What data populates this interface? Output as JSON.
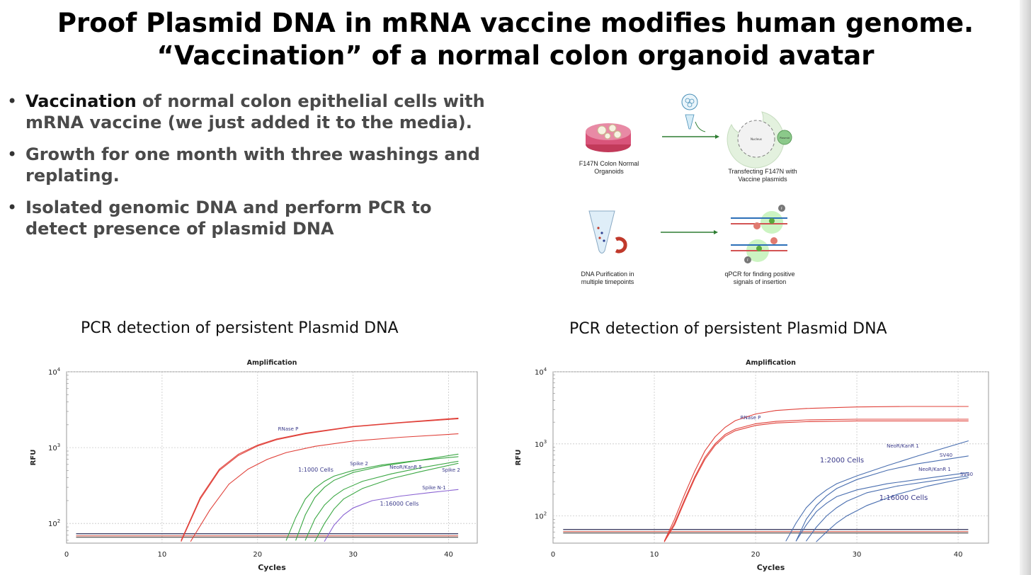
{
  "title": {
    "line1": "Proof Plasmid DNA in mRNA vaccine modifies human genome.",
    "line2": "“Vaccination” of a normal colon organoid avatar"
  },
  "bullets": [
    {
      "highlight": "Vaccination",
      "rest": " of normal colon epithelial cells with mRNA vaccine (we just added it to the media)."
    },
    {
      "highlight": "",
      "rest": "Growth for one month with three washings and replating."
    },
    {
      "highlight": "",
      "rest": "Isolated genomic DNA and perform PCR to detect presence of plasmid DNA"
    }
  ],
  "schematic": {
    "step1": "F147N Colon Normal Organoids",
    "step2": "Transfecting F147N with Vaccine plasmids",
    "step3": "DNA Purification in multiple timepoints",
    "step4": "qPCR for finding positive signals of insertion",
    "cell_nucleus_label": "Nucleus",
    "plasmid_label": "Plasmid",
    "probe_label": "F"
  },
  "colors": {
    "rnase_red": "#e0413a",
    "green_series": "#3ca845",
    "purple_series": "#8a63d2",
    "blue_series": "#4a6fb0",
    "threshold_dark": "#2b2b55",
    "bullet_gray": "#4a4a4a"
  },
  "chart_data": [
    {
      "type": "line",
      "panel_title": "PCR detection of persistent Plasmid DNA",
      "title": "Amplification",
      "xlabel": "Cycles",
      "ylabel": "RFU",
      "x_ticks": [
        0,
        10,
        20,
        30,
        40
      ],
      "y_ticks": [
        {
          "label_base": "10",
          "label_exp": "2",
          "value": 100
        },
        {
          "label_base": "10",
          "label_exp": "3",
          "value": 1000
        },
        {
          "label_base": "10",
          "label_exp": "4",
          "value": 10000
        }
      ],
      "xlim": [
        0,
        43
      ],
      "ylim": [
        55,
        10000
      ],
      "yscale": "log",
      "grid": true,
      "threshold": 70,
      "series": [
        {
          "name": "RNase P",
          "color": "#e0413a",
          "x": [
            12,
            14,
            16,
            18,
            20,
            22,
            25,
            30,
            35,
            41
          ],
          "y": [
            60,
            220,
            520,
            820,
            1080,
            1300,
            1550,
            1900,
            2150,
            2450
          ]
        },
        {
          "name": "",
          "color": "#e0413a",
          "x": [
            12,
            14,
            16,
            18,
            20,
            22,
            25,
            30,
            35,
            41
          ],
          "y": [
            58,
            210,
            500,
            790,
            1050,
            1270,
            1520,
            1880,
            2120,
            2400
          ]
        },
        {
          "name": "",
          "color": "#e0413a",
          "x": [
            13,
            15,
            17,
            19,
            21,
            23,
            26,
            30,
            35,
            41
          ],
          "y": [
            58,
            150,
            330,
            520,
            700,
            860,
            1040,
            1220,
            1370,
            1520
          ]
        },
        {
          "name": "Spike 2",
          "color": "#3ca845",
          "x": [
            23,
            24,
            25,
            26,
            27,
            28,
            30,
            33,
            36,
            41
          ],
          "y": [
            60,
            120,
            210,
            290,
            360,
            420,
            500,
            590,
            660,
            760
          ]
        },
        {
          "name": "",
          "color": "#3ca845",
          "x": [
            24,
            25,
            26,
            27,
            28,
            30,
            33,
            36,
            41
          ],
          "y": [
            60,
            130,
            220,
            300,
            370,
            470,
            570,
            650,
            820
          ]
        },
        {
          "name": "NeoR/KanR 5",
          "color": "#3ca845",
          "x": [
            25,
            26,
            27,
            28,
            29,
            31,
            34,
            37,
            41
          ],
          "y": [
            60,
            115,
            175,
            230,
            280,
            360,
            450,
            540,
            660
          ]
        },
        {
          "name": "Spike 2",
          "color": "#3ca845",
          "x": [
            26,
            27,
            28,
            29,
            31,
            34,
            37,
            41
          ],
          "y": [
            58,
            100,
            155,
            210,
            290,
            390,
            480,
            620
          ]
        },
        {
          "name": "Spike N-1",
          "color": "#8a63d2",
          "x": [
            27,
            28,
            29,
            30,
            32,
            35,
            38,
            41
          ],
          "y": [
            58,
            95,
            130,
            160,
            200,
            230,
            255,
            280
          ]
        }
      ],
      "annotations": [
        "RNase P",
        "1:1000 Cells",
        "Spike 2",
        "NeoR/KanR 5",
        "Spike 2",
        "Spike N-1",
        "1:16000 Cells"
      ]
    },
    {
      "type": "line",
      "panel_title": "PCR detection of persistent Plasmid DNA",
      "title": "Amplification",
      "xlabel": "Cycles",
      "ylabel": "RFU",
      "x_ticks": [
        0,
        10,
        20,
        30,
        40
      ],
      "y_ticks": [
        {
          "label_base": "10",
          "label_exp": "2",
          "value": 100
        },
        {
          "label_base": "10",
          "label_exp": "3",
          "value": 1000
        },
        {
          "label_base": "10",
          "label_exp": "4",
          "value": 10000
        }
      ],
      "xlim": [
        0,
        43
      ],
      "ylim": [
        42,
        10000
      ],
      "yscale": "log",
      "grid": true,
      "threshold": 62,
      "series": [
        {
          "name": "RNase P",
          "color": "#e0413a",
          "x": [
            11,
            12,
            13,
            14,
            15,
            16,
            17,
            18,
            20,
            22,
            25,
            30,
            35,
            41
          ],
          "y": [
            45,
            90,
            200,
            420,
            800,
            1250,
            1700,
            2100,
            2600,
            2900,
            3100,
            3250,
            3300,
            3300
          ]
        },
        {
          "name": "",
          "color": "#e0413a",
          "x": [
            11,
            12,
            13,
            14,
            15,
            16,
            17,
            18,
            20,
            22,
            25,
            30,
            35,
            41
          ],
          "y": [
            44,
            80,
            170,
            350,
            650,
            1000,
            1350,
            1600,
            1900,
            2050,
            2150,
            2200,
            2200,
            2200
          ]
        },
        {
          "name": "",
          "color": "#e0413a",
          "x": [
            11,
            12,
            13,
            14,
            15,
            16,
            17,
            18,
            20,
            22,
            25,
            30,
            35,
            41
          ],
          "y": [
            44,
            75,
            160,
            330,
            610,
            950,
            1280,
            1520,
            1800,
            1950,
            2030,
            2080,
            2080,
            2080
          ]
        },
        {
          "name": "NeoR/KanR 1",
          "color": "#4a6fb0",
          "x": [
            23,
            24,
            25,
            26,
            27,
            28,
            30,
            33,
            36,
            41
          ],
          "y": [
            45,
            80,
            130,
            180,
            230,
            280,
            360,
            500,
            680,
            1100
          ]
        },
        {
          "name": "SV40",
          "color": "#4a6fb0",
          "x": [
            24,
            25,
            26,
            27,
            28,
            30,
            33,
            36,
            41
          ],
          "y": [
            45,
            90,
            140,
            190,
            240,
            320,
            430,
            530,
            680
          ]
        },
        {
          "name": "NeoR/KanR 1",
          "color": "#4a6fb0",
          "x": [
            24,
            25,
            26,
            27,
            28,
            30,
            33,
            36,
            41
          ],
          "y": [
            45,
            75,
            115,
            150,
            185,
            230,
            280,
            320,
            400
          ]
        },
        {
          "name": "SV40",
          "color": "#4a6fb0",
          "x": [
            25,
            26,
            27,
            28,
            29,
            31,
            34,
            37,
            41
          ],
          "y": [
            45,
            70,
            100,
            130,
            160,
            210,
            260,
            300,
            360
          ]
        },
        {
          "name": "",
          "color": "#4a6fb0",
          "x": [
            26,
            27,
            28,
            29,
            31,
            34,
            37,
            41
          ],
          "y": [
            44,
            60,
            80,
            100,
            140,
            200,
            260,
            340
          ]
        }
      ],
      "annotations": [
        "RNase P",
        "NeoR/KanR 1",
        "SV40",
        "1:2000 Cells",
        "NeoR/KanR 1",
        "SV40",
        "1:16000 Cells"
      ]
    }
  ]
}
